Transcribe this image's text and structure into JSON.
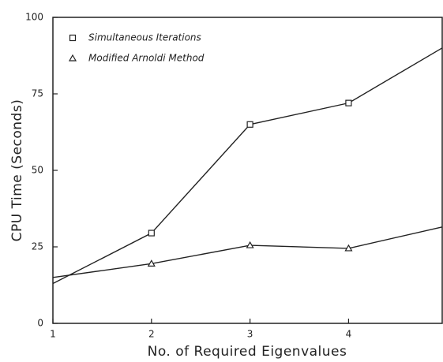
{
  "chart_data": {
    "type": "line",
    "xlabel": "No. of Required Eigenvalues",
    "ylabel": "CPU Time (Seconds)",
    "x": [
      1,
      2,
      3,
      4,
      4.95
    ],
    "xlim": [
      1,
      4.95
    ],
    "xticks": [
      1,
      2,
      3,
      4
    ],
    "ylim": [
      0,
      100
    ],
    "yticks": [
      0,
      25,
      50,
      75,
      100
    ],
    "legend": "top-left",
    "series": [
      {
        "name": "Simultaneous Iterations",
        "color": "#222222",
        "marker": "square",
        "values": [
          13,
          29.5,
          65,
          72,
          90
        ]
      },
      {
        "name": "Modified Arnoldi Method",
        "color": "#222222",
        "marker": "triangle",
        "values": [
          15,
          19.5,
          25.5,
          24.5,
          31.5
        ]
      }
    ]
  }
}
